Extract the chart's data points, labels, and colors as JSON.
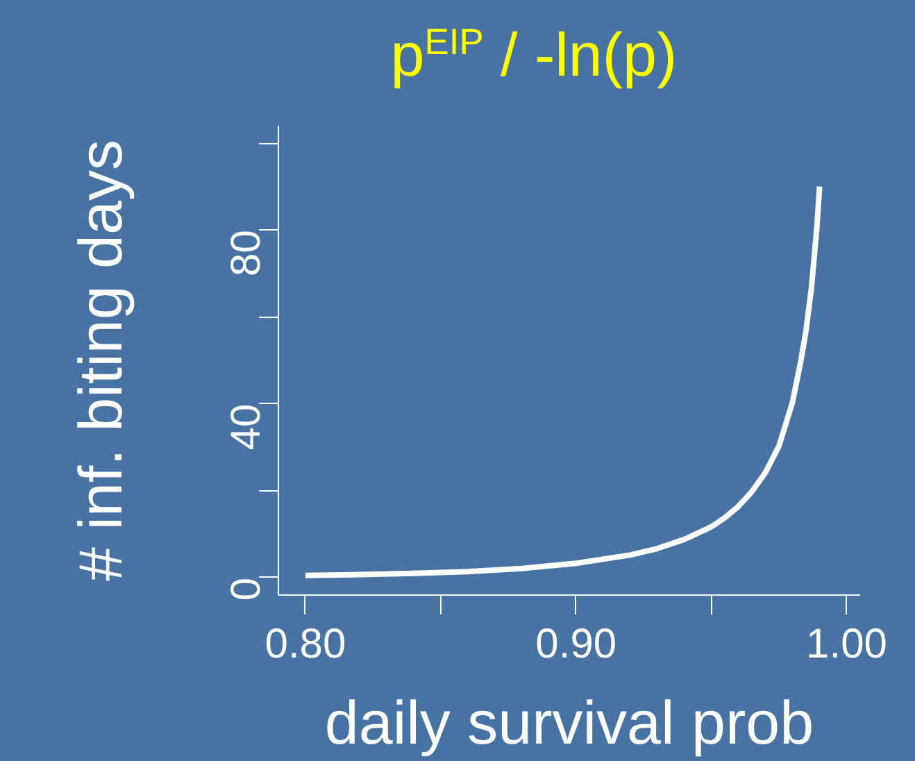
{
  "chart_data": {
    "type": "line",
    "title": "p$^{EIP}$ / -ln(p)",
    "xlabel": "daily survival prob",
    "ylabel": "# inf. biting days",
    "x": [
      0.8,
      0.82,
      0.84,
      0.86,
      0.88,
      0.9,
      0.92,
      0.93,
      0.94,
      0.95,
      0.955,
      0.96,
      0.965,
      0.97,
      0.975,
      0.98,
      0.983,
      0.985,
      0.987,
      0.989,
      0.99
    ],
    "series": [
      {
        "color": "#ffffff",
        "values": [
          0.5,
          0.7,
          1.0,
          1.4,
          2.1,
          3.3,
          5.2,
          6.7,
          8.8,
          11.7,
          13.8,
          16.4,
          19.8,
          24.2,
          30.3,
          40.4,
          49.6,
          56.9,
          66.7,
          80.6,
          90
        ]
      }
    ],
    "xlim": [
      0.79,
      1.005
    ],
    "ylim": [
      -4,
      104
    ],
    "xticks": [
      {
        "value": 0.8,
        "label": "0.80"
      },
      {
        "value": 0.85,
        "label": null
      },
      {
        "value": 0.9,
        "label": "0.90"
      },
      {
        "value": 0.95,
        "label": null
      },
      {
        "value": 1.0,
        "label": "1.00"
      }
    ],
    "yticks": [
      0,
      {
        "value": 20,
        "label": null
      },
      40,
      {
        "value": 60,
        "label": null
      },
      80,
      {
        "value": 100,
        "label": null
      }
    ],
    "grid": false,
    "marker": "none",
    "line_style": "solid"
  }
}
